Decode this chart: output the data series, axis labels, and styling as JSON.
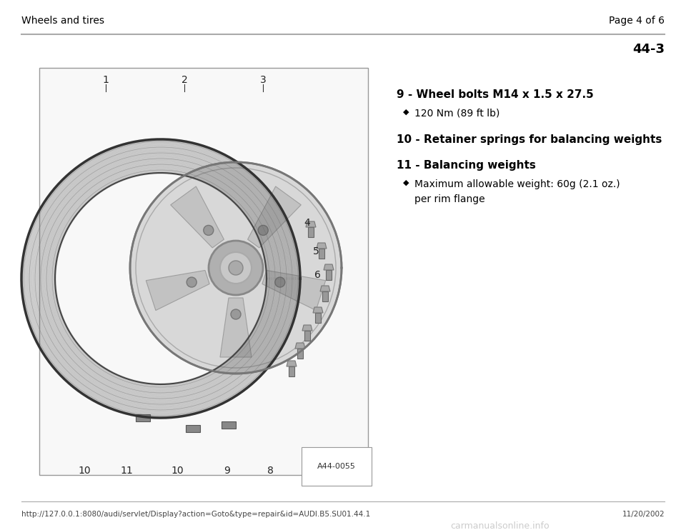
{
  "page_header_left": "Wheels and tires",
  "page_header_right": "Page 4 of 6",
  "page_number": "44-3",
  "bg_color": "#ffffff",
  "header_line_color": "#aaaaaa",
  "footer_line_color": "#aaaaaa",
  "footer_url": "http://127.0.0.1:8080/audi/servlet/Display?action=Goto&type=repair&id=AUDI.B5.SU01.44.1",
  "footer_date": "11/20/2002",
  "footer_logo": "carmanualsonline.info",
  "diagram_label": "A44-0055",
  "items": [
    {
      "number": "9",
      "title": "Wheel bolts M14 x 1.5 x 27.5",
      "bullets": [
        "120 Nm (89 ft lb)"
      ]
    },
    {
      "number": "10",
      "title": "Retainer springs for balancing weights",
      "bullets": []
    },
    {
      "number": "11",
      "title": "Balancing weights",
      "bullets": [
        "Maximum allowable weight: 60g (2.1 oz.)\nper rim flange"
      ]
    }
  ],
  "text_color": "#000000",
  "header_font_size": 10,
  "item_title_font_size": 11,
  "bullet_font_size": 10,
  "page_num_font_size": 13
}
